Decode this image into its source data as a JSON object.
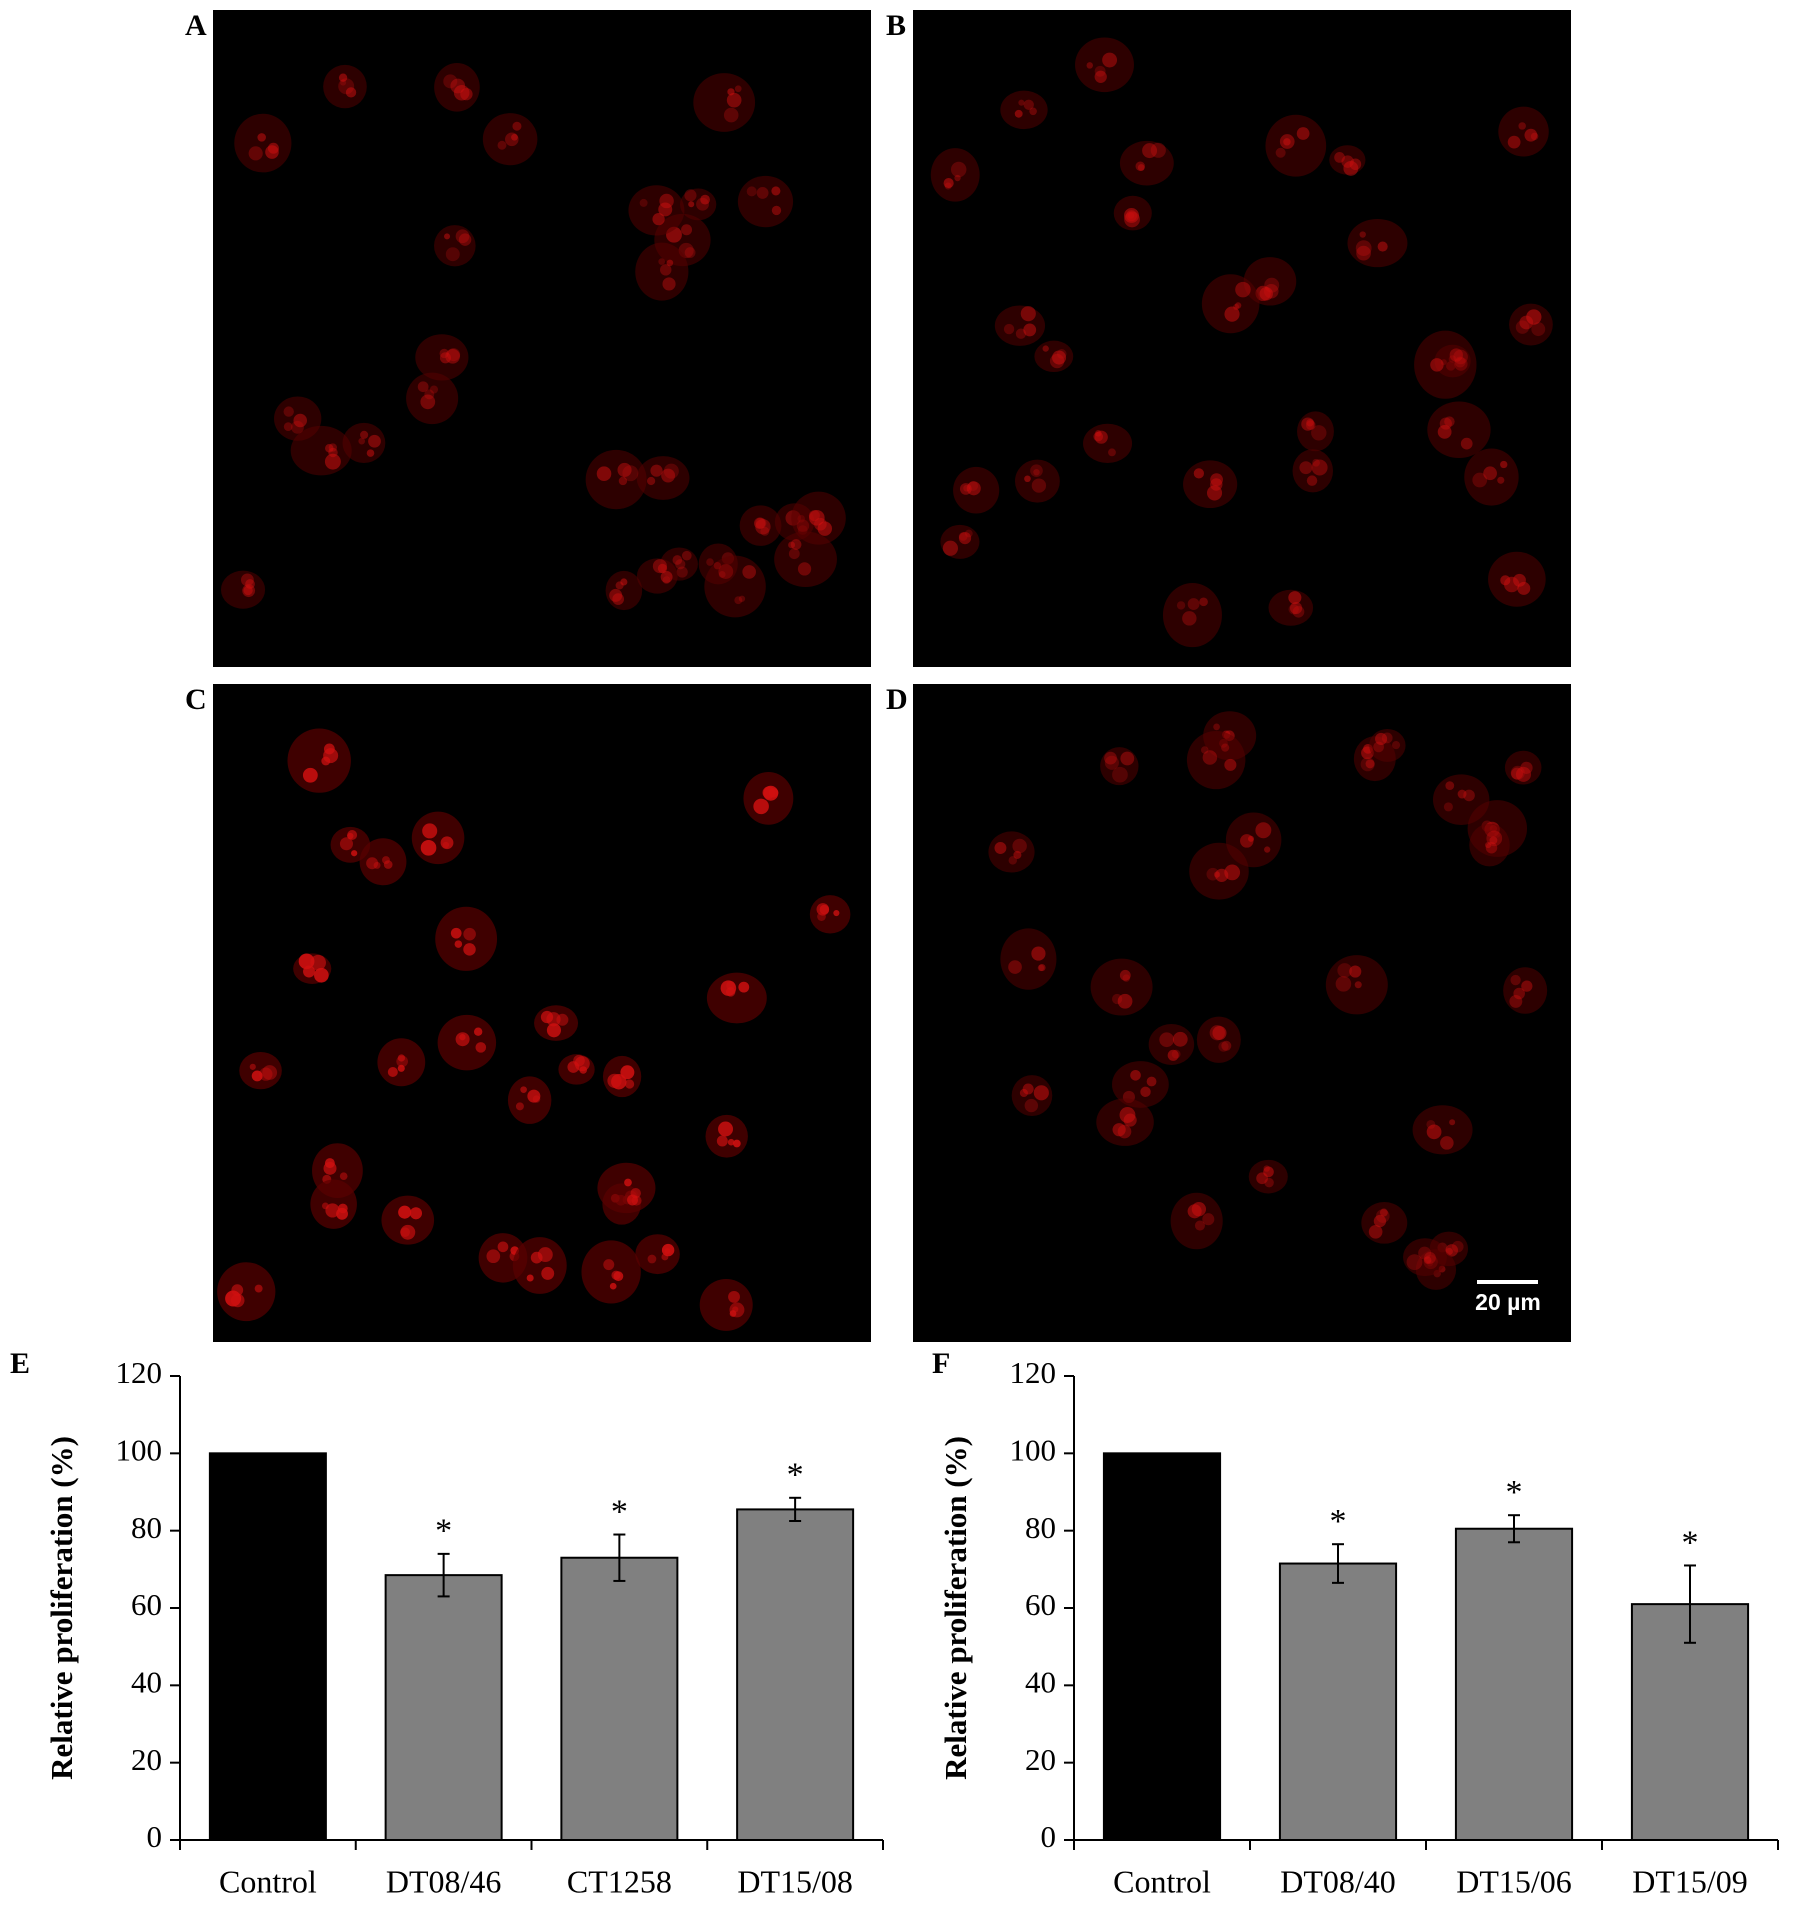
{
  "panels": [
    {
      "label": "A"
    },
    {
      "label": "B"
    },
    {
      "label": "C"
    },
    {
      "label": "D",
      "scale_bar": "20 µm"
    }
  ],
  "chart_data": [
    {
      "type": "bar",
      "panel_label": "E",
      "y_label": "Relative proliferation (%)",
      "categories": [
        "Control",
        "DT08/46",
        "CT1258",
        "DT15/08"
      ],
      "values": [
        100,
        68.5,
        73,
        85.5
      ],
      "errors": [
        null,
        5.5,
        6,
        3
      ],
      "colors": [
        "#000000",
        "#808080",
        "#808080",
        "#808080"
      ],
      "significance": [
        null,
        "*",
        "*",
        "*"
      ],
      "ylim": [
        0,
        120
      ],
      "yticks": [
        0,
        20,
        40,
        60,
        80,
        100,
        120
      ]
    },
    {
      "type": "bar",
      "panel_label": "F",
      "y_label": "Relative proliferation (%)",
      "categories": [
        "Control",
        "DT08/40",
        "DT15/06",
        "DT15/09"
      ],
      "values": [
        100,
        71.5,
        80.5,
        61
      ],
      "errors": [
        null,
        5,
        3.5,
        10
      ],
      "colors": [
        "#000000",
        "#808080",
        "#808080",
        "#808080"
      ],
      "significance": [
        null,
        "*",
        "*",
        "*"
      ],
      "ylim": [
        0,
        120
      ],
      "yticks": [
        0,
        20,
        40,
        60,
        80,
        100,
        120
      ]
    }
  ]
}
